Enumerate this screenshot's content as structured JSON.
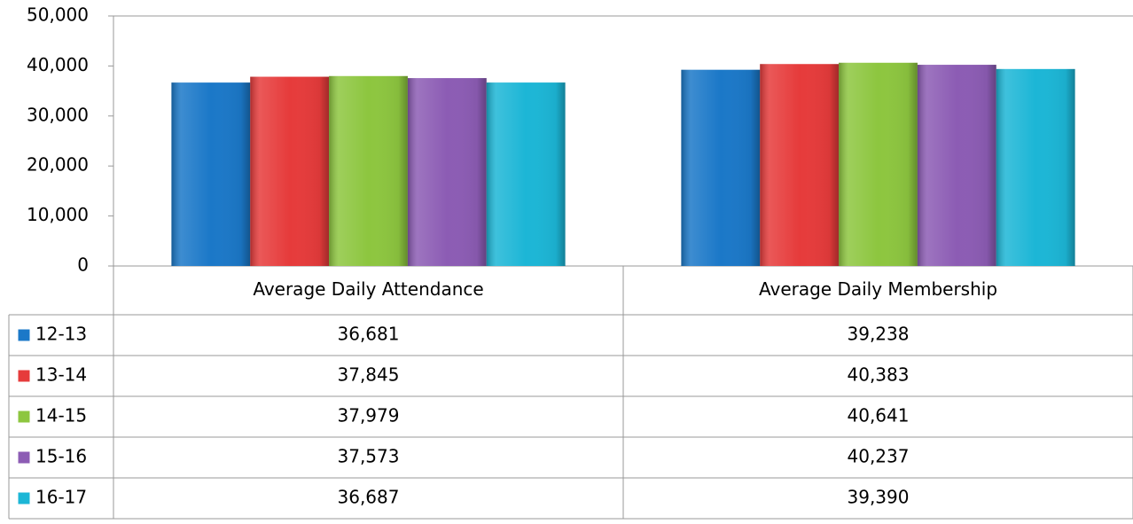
{
  "chart_data": {
    "type": "bar",
    "categories": [
      "Average Daily Attendance",
      "Average Daily Membership"
    ],
    "series": [
      {
        "name": "12-13",
        "color": "#1b78c8",
        "values": [
          36681,
          39238
        ],
        "value_labels": [
          "36,681",
          "39,238"
        ]
      },
      {
        "name": "13-14",
        "color": "#e63b3b",
        "values": [
          37845,
          40383
        ],
        "value_labels": [
          "37,845",
          "40,383"
        ]
      },
      {
        "name": "14-15",
        "color": "#8dc63f",
        "values": [
          37979,
          40641
        ],
        "value_labels": [
          "37,979",
          "40,641"
        ]
      },
      {
        "name": "15-16",
        "color": "#8c5cb4",
        "values": [
          37573,
          40237
        ],
        "value_labels": [
          "37,573",
          "40,237"
        ]
      },
      {
        "name": "16-17",
        "color": "#1cb6d6",
        "values": [
          36687,
          39390
        ],
        "value_labels": [
          "36,687",
          "39,390"
        ]
      }
    ],
    "ylim": [
      0,
      50000
    ],
    "yticks": [
      0,
      {
        "value": 10000,
        "label": "10,000"
      },
      {
        "value": 20000,
        "label": "20,000"
      },
      {
        "value": 30000,
        "label": "30,000"
      },
      {
        "value": 40000,
        "label": "40,000"
      },
      {
        "value": 50000,
        "label": "50,000"
      }
    ],
    "grid": false
  }
}
